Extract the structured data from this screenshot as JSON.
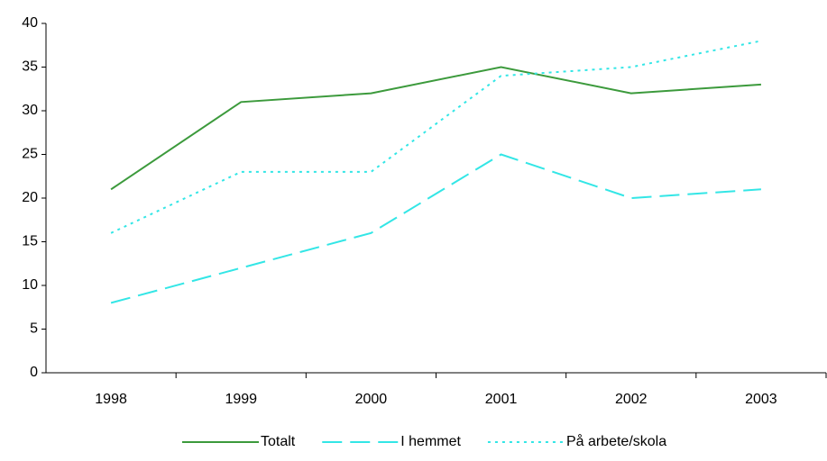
{
  "chart_data": {
    "type": "line",
    "categories": [
      "1998",
      "1999",
      "2000",
      "2001",
      "2002",
      "2003"
    ],
    "series": [
      {
        "name": "Totalt",
        "color": "#3c9a3c",
        "dash": "solid",
        "values": [
          21,
          31,
          32,
          35,
          32,
          33
        ]
      },
      {
        "name": "I hemmet",
        "color": "#33e6e6",
        "dash": "dashed",
        "values": [
          8,
          12,
          16,
          25,
          20,
          21
        ]
      },
      {
        "name": "På arbete/skola",
        "color": "#33e6e6",
        "dash": "dotted",
        "values": [
          16,
          23,
          23,
          34,
          35,
          38
        ]
      }
    ],
    "ylim": [
      0,
      40
    ],
    "yticks": [
      0,
      5,
      10,
      15,
      20,
      25,
      30,
      35,
      40
    ],
    "legend": "bottom"
  }
}
